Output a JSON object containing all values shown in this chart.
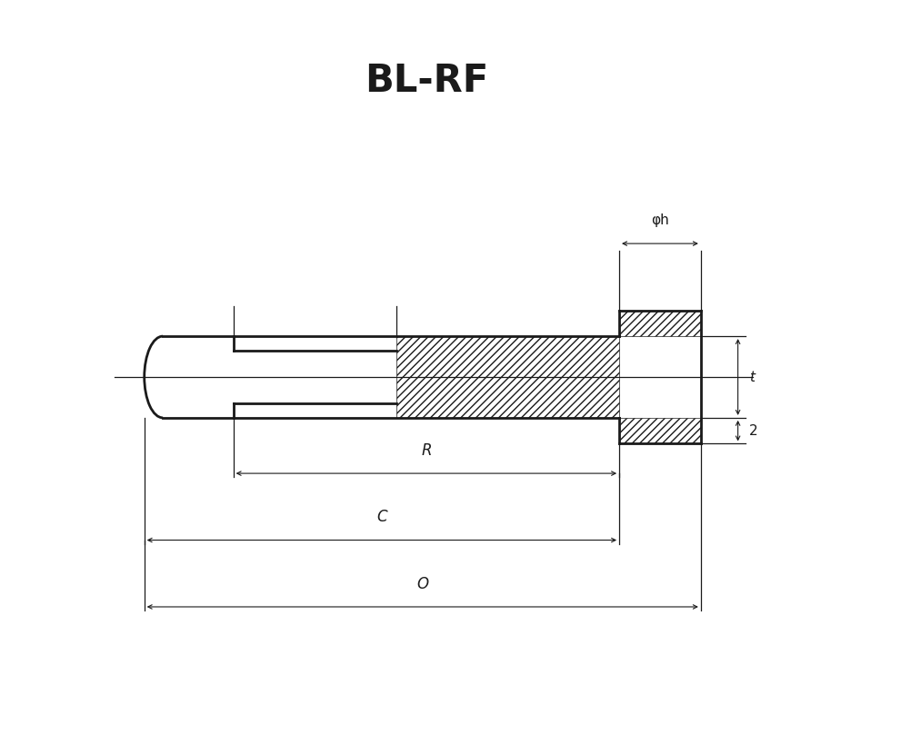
{
  "title": "BL-RF",
  "title_fontsize": 30,
  "title_fontweight": "bold",
  "bg_color": "#ffffff",
  "line_color": "#1a1a1a",
  "figsize": [
    10.03,
    8.3
  ],
  "dpi": 100,
  "labels": {
    "phi_h": "φh",
    "t": "t",
    "z": "2",
    "R": "R",
    "C": "C",
    "O": "O"
  },
  "lw_thick": 2.0,
  "lw_thin": 0.9,
  "lw_dim": 0.8
}
